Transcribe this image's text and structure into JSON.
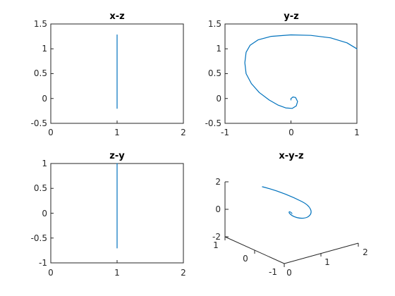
{
  "figure": {
    "background": "#ffffff",
    "axis_color": "#262626",
    "series_color": "#0072bd"
  },
  "chart_data": [
    {
      "type": "line",
      "title": "x-z",
      "xlim": [
        0,
        2
      ],
      "ylim": [
        -0.5,
        1.5
      ],
      "xticks": [
        "0",
        "1",
        "2"
      ],
      "yticks": [
        "-0.5",
        "0",
        "0.5",
        "1",
        "1.5"
      ],
      "xtick_values": [
        0,
        1,
        2
      ],
      "ytick_values": [
        -0.5,
        0,
        0.5,
        1,
        1.5
      ],
      "series": [
        {
          "x": [
            1,
            1
          ],
          "y": [
            -0.2,
            1.28
          ]
        }
      ]
    },
    {
      "type": "line",
      "title": "y-z",
      "xlim": [
        -1,
        1
      ],
      "ylim": [
        -0.5,
        1.5
      ],
      "xticks": [
        "-1",
        "0",
        "1"
      ],
      "yticks": [
        "-0.5",
        "0",
        "0.5",
        "1",
        "1.5"
      ],
      "xtick_values": [
        -1,
        0,
        1
      ],
      "ytick_values": [
        -0.5,
        0,
        0.5,
        1,
        1.5
      ],
      "series": [
        {
          "x": [
            1.0,
            0.85,
            0.6,
            0.3,
            0.0,
            -0.3,
            -0.5,
            -0.62,
            -0.68,
            -0.7,
            -0.68,
            -0.6,
            -0.48,
            -0.33,
            -0.2,
            -0.08,
            0.02,
            0.08,
            0.1,
            0.07,
            0.03,
            0.0,
            0.0
          ],
          "y": [
            1.0,
            1.12,
            1.22,
            1.27,
            1.28,
            1.25,
            1.18,
            1.07,
            0.93,
            0.72,
            0.5,
            0.3,
            0.12,
            -0.03,
            -0.13,
            -0.19,
            -0.2,
            -0.15,
            -0.06,
            0.02,
            0.03,
            0.0,
            -0.03
          ]
        }
      ]
    },
    {
      "type": "line",
      "title": "z-y",
      "xlim": [
        0,
        2
      ],
      "ylim": [
        -1,
        1
      ],
      "xticks": [
        "0",
        "1",
        "2"
      ],
      "yticks": [
        "-1",
        "-0.5",
        "0",
        "0.5",
        "1"
      ],
      "xtick_values": [
        0,
        1,
        2
      ],
      "ytick_values": [
        -1,
        -0.5,
        0,
        0.5,
        1
      ],
      "series": [
        {
          "x": [
            1,
            1
          ],
          "y": [
            -0.7,
            1.0
          ]
        }
      ]
    },
    {
      "type": "line",
      "title": "x-y-z",
      "projection": "3d",
      "xticks": [
        "0",
        "1",
        "2"
      ],
      "yticks": [
        "-1",
        "0",
        "1"
      ],
      "zticks": [
        "-2",
        "0",
        "2"
      ],
      "series": [
        {
          "x": [
            1,
            1
          ],
          "y": [
            1.0,
            -0.7
          ],
          "z": [
            -0.2,
            1.28
          ]
        }
      ]
    }
  ]
}
